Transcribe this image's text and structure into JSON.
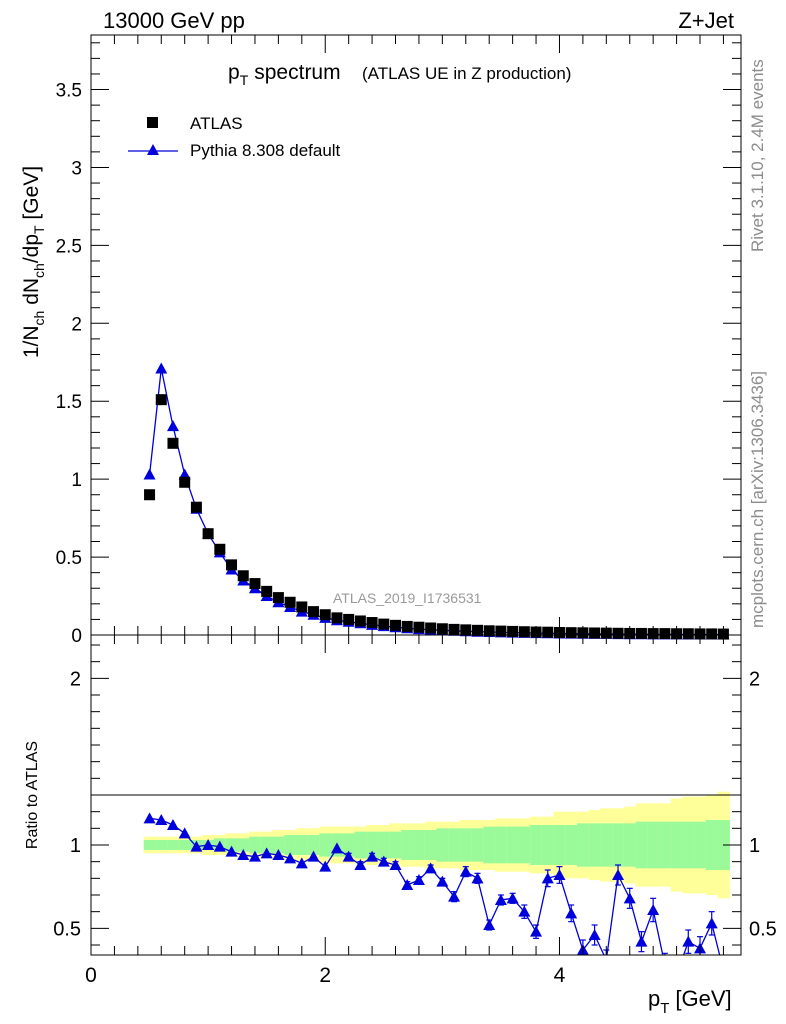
{
  "header": {
    "left": "13000 GeV pp",
    "right": "Z+Jet"
  },
  "title": {
    "main": "p",
    "main_sub": "T",
    "main_rest": "spectrum",
    "paren": "(ATLAS UE in Z production)"
  },
  "axes": {
    "ylabel_top": "1/N",
    "ylabel_ratio": "Ratio to ATLAS",
    "xlabel": "p",
    "xlabel_sub": "T",
    "xlabel_unit": "[GeV]"
  },
  "legend": [
    {
      "label": "ATLAS",
      "marker": "square",
      "color": "#000000"
    },
    {
      "label": "Pythia 8.308 default",
      "marker": "triangle",
      "color": "#0000dd"
    }
  ],
  "watermark": "ATLAS_2019_I1736531",
  "side_texts": {
    "rivet": "Rivet 3.1.10,  2.4M events",
    "mcplots": "mcplots.cern.ch [arXiv:1306.3436]"
  },
  "colors": {
    "data": "#000000",
    "mc": "#0000dd",
    "band_inner": "#9afa9a",
    "band_outer": "#ffff99"
  },
  "chart_data": [
    {
      "type": "scatter",
      "panel": "main",
      "ylim": [
        0,
        3.85
      ],
      "xlim": [
        0,
        5.55
      ],
      "yticks": [
        "0",
        "0.5",
        "1",
        "1.5",
        "2",
        "2.5",
        "3",
        "3.5"
      ],
      "xticks": [
        "0",
        "2",
        "4"
      ],
      "series": [
        {
          "name": "ATLAS",
          "x": [
            0.5,
            0.6,
            0.7,
            0.8,
            0.9,
            1.0,
            1.1,
            1.2,
            1.3,
            1.4,
            1.5,
            1.6,
            1.7,
            1.8,
            1.9,
            2.0,
            2.1,
            2.2,
            2.3,
            2.4,
            2.5,
            2.6,
            2.7,
            2.8,
            2.9,
            3.0,
            3.1,
            3.2,
            3.3,
            3.4,
            3.5,
            3.6,
            3.7,
            3.8,
            3.9,
            4.0,
            4.1,
            4.2,
            4.3,
            4.4,
            4.5,
            4.6,
            4.7,
            4.8,
            4.9,
            5.0,
            5.1,
            5.2,
            5.3,
            5.4
          ],
          "y": [
            0.9,
            1.51,
            1.23,
            0.98,
            0.82,
            0.65,
            0.55,
            0.45,
            0.38,
            0.33,
            0.28,
            0.24,
            0.21,
            0.18,
            0.15,
            0.13,
            0.11,
            0.1,
            0.09,
            0.08,
            0.07,
            0.062,
            0.055,
            0.05,
            0.045,
            0.04,
            0.036,
            0.033,
            0.03,
            0.027,
            0.025,
            0.023,
            0.021,
            0.019,
            0.018,
            0.016,
            0.015,
            0.014,
            0.013,
            0.012,
            0.011,
            0.01,
            0.01,
            0.009,
            0.009,
            0.008,
            0.008,
            0.007,
            0.007,
            0.006
          ]
        },
        {
          "name": "Pythia 8.308 default",
          "x": [
            0.5,
            0.6,
            0.7,
            0.8,
            0.9,
            1.0,
            1.1,
            1.2,
            1.3,
            1.4,
            1.5,
            1.6,
            1.7,
            1.8,
            1.9,
            2.0,
            2.1,
            2.2,
            2.3,
            2.4,
            2.5,
            2.6,
            2.7,
            2.8,
            2.9,
            3.0,
            3.1,
            3.2,
            3.3,
            3.4,
            3.5,
            3.6,
            3.7,
            3.8,
            3.9,
            4.0,
            4.1,
            4.2,
            4.3,
            4.4,
            4.5,
            4.6,
            4.7,
            4.8,
            4.9,
            5.0,
            5.1,
            5.2,
            5.3,
            5.4
          ],
          "y": [
            1.03,
            1.71,
            1.34,
            1.03,
            0.81,
            0.65,
            0.53,
            0.42,
            0.35,
            0.3,
            0.25,
            0.21,
            0.18,
            0.15,
            0.13,
            0.11,
            0.095,
            0.085,
            0.075,
            0.065,
            0.057,
            0.05,
            0.043,
            0.038,
            0.034,
            0.03,
            0.027,
            0.024,
            0.021,
            0.019,
            0.017,
            0.015,
            0.014,
            0.012,
            0.011,
            0.01,
            0.009,
            0.008,
            0.007,
            0.007,
            0.006,
            0.005,
            0.005,
            0.004,
            0.004,
            0.004,
            0.003,
            0.003,
            0.003,
            0.003
          ]
        }
      ]
    },
    {
      "type": "line",
      "panel": "ratio",
      "ylabel": "Ratio to ATLAS",
      "xlabel": "p_T [GeV]",
      "ylim": [
        0.34,
        2.26
      ],
      "xlim": [
        0,
        5.55
      ],
      "yticks": [
        "0.5",
        "1",
        "2"
      ],
      "xticks": [
        "0",
        "2",
        "4"
      ],
      "bands": {
        "x": [
          0.5,
          0.6,
          0.7,
          0.8,
          0.9,
          1.0,
          1.1,
          1.2,
          1.3,
          1.4,
          1.5,
          1.6,
          1.7,
          1.8,
          1.9,
          2.0,
          2.1,
          2.2,
          2.3,
          2.4,
          2.5,
          2.6,
          2.7,
          2.8,
          2.9,
          3.0,
          3.1,
          3.2,
          3.3,
          3.4,
          3.5,
          3.6,
          3.7,
          3.8,
          3.9,
          4.0,
          4.1,
          4.2,
          4.3,
          4.4,
          4.5,
          4.6,
          4.7,
          4.8,
          4.9,
          5.0,
          5.1,
          5.2,
          5.3,
          5.4
        ],
        "inner": [
          0.03,
          0.03,
          0.03,
          0.03,
          0.03,
          0.03,
          0.04,
          0.04,
          0.04,
          0.05,
          0.05,
          0.05,
          0.06,
          0.06,
          0.06,
          0.07,
          0.07,
          0.07,
          0.08,
          0.08,
          0.08,
          0.08,
          0.09,
          0.09,
          0.09,
          0.1,
          0.1,
          0.1,
          0.1,
          0.11,
          0.11,
          0.11,
          0.11,
          0.12,
          0.12,
          0.12,
          0.12,
          0.13,
          0.13,
          0.13,
          0.13,
          0.13,
          0.14,
          0.14,
          0.14,
          0.14,
          0.14,
          0.14,
          0.15,
          0.15
        ],
        "outer": [
          0.05,
          0.05,
          0.05,
          0.05,
          0.05,
          0.06,
          0.06,
          0.07,
          0.07,
          0.08,
          0.08,
          0.09,
          0.09,
          0.1,
          0.1,
          0.11,
          0.11,
          0.11,
          0.11,
          0.12,
          0.12,
          0.13,
          0.13,
          0.13,
          0.14,
          0.14,
          0.14,
          0.15,
          0.15,
          0.15,
          0.16,
          0.16,
          0.16,
          0.17,
          0.17,
          0.2,
          0.2,
          0.2,
          0.21,
          0.22,
          0.22,
          0.23,
          0.25,
          0.25,
          0.25,
          0.28,
          0.29,
          0.29,
          0.3,
          0.32
        ]
      },
      "series": [
        {
          "name": "Pythia 8.308 default",
          "x": [
            0.5,
            0.6,
            0.7,
            0.8,
            0.9,
            1.0,
            1.1,
            1.2,
            1.3,
            1.4,
            1.5,
            1.6,
            1.7,
            1.8,
            1.9,
            2.0,
            2.1,
            2.2,
            2.3,
            2.4,
            2.5,
            2.6,
            2.7,
            2.8,
            2.9,
            3.0,
            3.1,
            3.2,
            3.3,
            3.4,
            3.5,
            3.6,
            3.7,
            3.8,
            3.9,
            4.0,
            4.1,
            4.2,
            4.3,
            4.4,
            4.5,
            4.6,
            4.7,
            4.8,
            4.9,
            5.0,
            5.1,
            5.2,
            5.3,
            5.4
          ],
          "y": [
            1.16,
            1.15,
            1.12,
            1.07,
            0.99,
            1.0,
            0.99,
            0.96,
            0.94,
            0.93,
            0.95,
            0.94,
            0.92,
            0.89,
            0.93,
            0.87,
            0.98,
            0.93,
            0.88,
            0.93,
            0.9,
            0.88,
            0.76,
            0.79,
            0.86,
            0.78,
            0.69,
            0.84,
            0.8,
            0.52,
            0.67,
            0.68,
            0.6,
            0.48,
            0.8,
            0.82,
            0.59,
            0.37,
            0.46,
            0.31,
            0.82,
            0.68,
            0.42,
            0.61,
            0.28,
            0.22,
            0.42,
            0.38,
            0.53,
            0.25
          ],
          "err": [
            0.01,
            0.01,
            0.01,
            0.01,
            0.01,
            0.01,
            0.01,
            0.01,
            0.01,
            0.01,
            0.01,
            0.01,
            0.01,
            0.01,
            0.01,
            0.01,
            0.01,
            0.02,
            0.02,
            0.02,
            0.02,
            0.02,
            0.02,
            0.02,
            0.02,
            0.02,
            0.03,
            0.03,
            0.03,
            0.03,
            0.03,
            0.03,
            0.04,
            0.04,
            0.05,
            0.05,
            0.05,
            0.06,
            0.06,
            0.06,
            0.06,
            0.06,
            0.06,
            0.07,
            0.07,
            0.07,
            0.07,
            0.07,
            0.07,
            0.07
          ]
        }
      ]
    }
  ]
}
